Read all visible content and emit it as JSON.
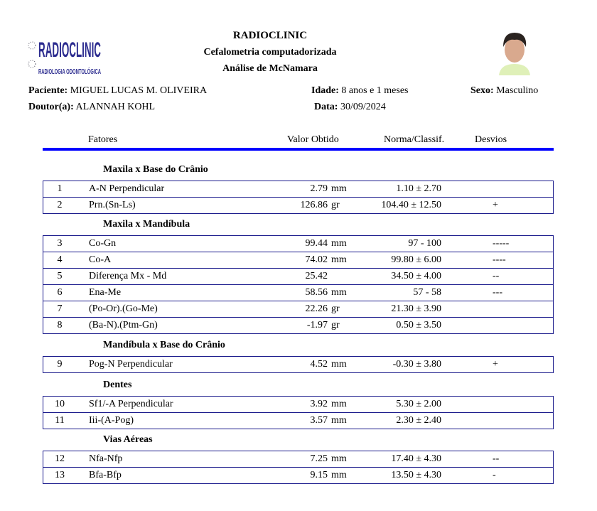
{
  "header": {
    "title": "RADIOCLINIC",
    "subtitle": "Cefalometria computadorizada",
    "analysis": "Análise de McNamara",
    "logo_text": "RADIOCLINIC RADIOLOGIA ODONTOLÓGICA"
  },
  "patient": {
    "patient_label": "Paciente:",
    "patient": "MIGUEL LUCAS M. OLIVEIRA",
    "doctor_label": "Doutor(a):",
    "doctor": "ALANNAH KOHL",
    "age_label": "Idade:",
    "age": "8 anos e 1 meses",
    "date_label": "Data:",
    "date": "30/09/2024",
    "sex_label": "Sexo:",
    "sex": "Masculino"
  },
  "columns": {
    "factors": "Fatores",
    "value": "Valor Obtido",
    "norm": "Norma/Classif.",
    "dev": "Desvios"
  },
  "accent": "#0000ff",
  "sections": [
    {
      "title": "Maxila x Base do Crânio",
      "rows": [
        {
          "n": "1",
          "f": "A-N Perpendicular",
          "v": "2.79",
          "u": "mm",
          "nr": "1.10 ± 2.70",
          "d": ""
        },
        {
          "n": "2",
          "f": "Prn.(Sn-Ls)",
          "v": "126.86",
          "u": "gr",
          "nr": "104.40 ± 12.50",
          "d": "+"
        }
      ]
    },
    {
      "title": "Maxila x Mandíbula",
      "rows": [
        {
          "n": "3",
          "f": "Co-Gn",
          "v": "99.44",
          "u": "mm",
          "nr": "97 - 100",
          "d": "-----"
        },
        {
          "n": "4",
          "f": "Co-A",
          "v": "74.02",
          "u": "mm",
          "nr": "99.80 ± 6.00",
          "d": "----"
        },
        {
          "n": "5",
          "f": "Diferença Mx - Md",
          "v": "25.42",
          "u": "",
          "nr": "34.50 ± 4.00",
          "d": "--"
        },
        {
          "n": "6",
          "f": "Ena-Me",
          "v": "58.56",
          "u": "mm",
          "nr": "57 - 58",
          "d": "---"
        },
        {
          "n": "7",
          "f": "(Po-Or).(Go-Me)",
          "v": "22.26",
          "u": "gr",
          "nr": "21.30 ± 3.90",
          "d": ""
        },
        {
          "n": "8",
          "f": "(Ba-N).(Ptm-Gn)",
          "v": "-1.97",
          "u": "gr",
          "nr": "0.50 ± 3.50",
          "d": ""
        }
      ]
    },
    {
      "title": "Mandíbula x Base do Crânio",
      "rows": [
        {
          "n": "9",
          "f": "Pog-N Perpendicular",
          "v": "4.52",
          "u": "mm",
          "nr": "-0.30 ± 3.80",
          "d": "+"
        }
      ]
    },
    {
      "title": "Dentes",
      "rows": [
        {
          "n": "10",
          "f": "Sf1/-A Perpendicular",
          "v": "3.92",
          "u": "mm",
          "nr": "5.30 ± 2.00",
          "d": ""
        },
        {
          "n": "11",
          "f": "Iii-(A-Pog)",
          "v": "3.57",
          "u": "mm",
          "nr": "2.30 ± 2.40",
          "d": ""
        }
      ]
    },
    {
      "title": "Vias Aéreas",
      "rows": [
        {
          "n": "12",
          "f": "Nfa-Nfp",
          "v": "7.25",
          "u": "mm",
          "nr": "17.40 ± 4.30",
          "d": "--"
        },
        {
          "n": "13",
          "f": "Bfa-Bfp",
          "v": "9.15",
          "u": "mm",
          "nr": "13.50 ± 4.30",
          "d": "-"
        }
      ]
    }
  ]
}
